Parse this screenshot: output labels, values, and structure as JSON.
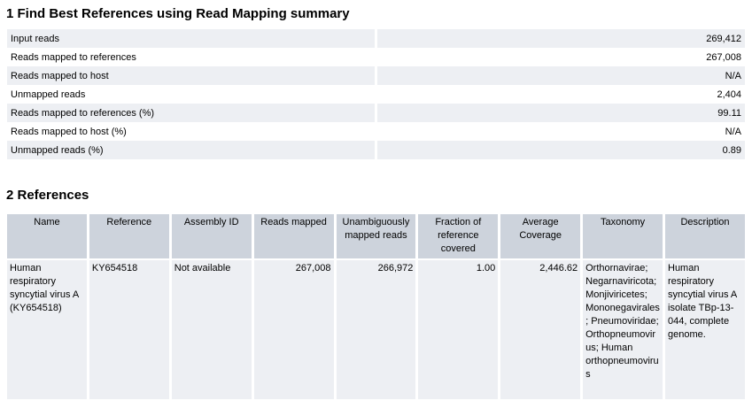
{
  "section1": {
    "title": "1 Find Best References using Read Mapping summary",
    "rows": [
      {
        "label": "Input reads",
        "value": "269,412"
      },
      {
        "label": "Reads mapped to references",
        "value": "267,008"
      },
      {
        "label": "Reads mapped to host",
        "value": "N/A"
      },
      {
        "label": "Unmapped reads",
        "value": "2,404"
      },
      {
        "label": "Reads mapped to references (%)",
        "value": "99.11"
      },
      {
        "label": "Reads mapped to host (%)",
        "value": "N/A"
      },
      {
        "label": "Unmapped reads (%)",
        "value": "0.89"
      }
    ]
  },
  "section2": {
    "title": "2 References",
    "columns": {
      "name": "Name",
      "reference": "Reference",
      "assembly_id": "Assembly ID",
      "reads_mapped": "Reads mapped",
      "unambiguously_mapped_reads": "Unambiguously mapped reads",
      "fraction_of_reference_covered": "Fraction of reference covered",
      "average_coverage": "Average Coverage",
      "taxonomy": "Taxonomy",
      "description": "Description"
    },
    "rows": [
      {
        "name": "Human respiratory syncytial virus A (KY654518)",
        "reference": "KY654518",
        "assembly_id": "Not available",
        "reads_mapped": "267,008",
        "unambiguously_mapped_reads": "266,972",
        "fraction_of_reference_covered": "1.00",
        "average_coverage": "2,446.62",
        "taxonomy": "Orthornavirae; Negarnaviricota; Monjiviricetes; Mononegavirales; Pneumoviridae; Orthopneumovirus; Human orthopneumovirus",
        "description": "Human respiratory syncytial virus A isolate TBp-13-044, complete genome."
      }
    ]
  },
  "colors": {
    "table_header_bg": "#cdd3dc",
    "row_alt_bg": "#edeff3",
    "row_bg": "#ffffff",
    "text": "#000000",
    "background": "#ffffff"
  }
}
